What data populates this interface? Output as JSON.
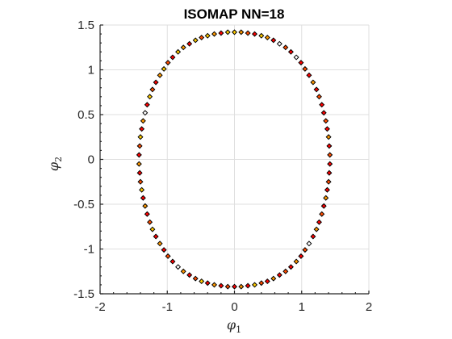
{
  "chart_data": {
    "type": "scatter",
    "title": "ISOMAP NN=18",
    "xlabel": {
      "base": "φ",
      "sub": "1"
    },
    "ylabel": {
      "base": "φ",
      "sub": "2"
    },
    "xlim": [
      -2,
      2
    ],
    "ylim": [
      -1.5,
      1.5
    ],
    "xticks": [
      -2,
      -1,
      0,
      1,
      2
    ],
    "yticks": [
      -1.5,
      -1,
      -0.5,
      0,
      0.5,
      1,
      1.5
    ],
    "xtick_labels": [
      "-2",
      "-1",
      "0",
      "1",
      "2"
    ],
    "ytick_labels": [
      "-1.5",
      "-1",
      "-0.5",
      "0",
      "0.5",
      "1",
      "1.5"
    ],
    "grid": true,
    "marker": "diamond",
    "marker_edge_color": "#000000",
    "fill_colors": [
      "#ff0000",
      "#ff4d00",
      "#ff9900",
      "#ffcc00",
      "#ffffff"
    ],
    "points": [
      [
        0.0,
        1.42,
        3
      ],
      [
        0.1,
        1.42,
        2
      ],
      [
        0.2,
        1.41,
        1
      ],
      [
        0.3,
        1.4,
        0
      ],
      [
        0.4,
        1.38,
        3
      ],
      [
        0.49,
        1.36,
        2
      ],
      [
        0.58,
        1.33,
        0
      ],
      [
        0.67,
        1.29,
        4
      ],
      [
        0.76,
        1.25,
        1
      ],
      [
        0.84,
        1.2,
        0
      ],
      [
        0.92,
        1.14,
        4
      ],
      [
        0.99,
        1.08,
        0
      ],
      [
        1.05,
        1.01,
        1
      ],
      [
        1.11,
        0.94,
        0
      ],
      [
        1.17,
        0.86,
        2
      ],
      [
        1.22,
        0.78,
        0
      ],
      [
        1.26,
        0.7,
        1
      ],
      [
        1.3,
        0.61,
        0
      ],
      [
        1.33,
        0.52,
        0
      ],
      [
        1.36,
        0.43,
        1
      ],
      [
        1.38,
        0.34,
        0
      ],
      [
        1.4,
        0.25,
        2
      ],
      [
        1.41,
        0.15,
        0
      ],
      [
        1.42,
        0.05,
        1
      ],
      [
        1.42,
        -0.05,
        0
      ],
      [
        1.41,
        -0.15,
        0
      ],
      [
        1.4,
        -0.25,
        1
      ],
      [
        1.38,
        -0.34,
        0
      ],
      [
        1.36,
        -0.43,
        2
      ],
      [
        1.33,
        -0.52,
        0
      ],
      [
        1.3,
        -0.61,
        1
      ],
      [
        1.26,
        -0.7,
        0
      ],
      [
        1.22,
        -0.78,
        2
      ],
      [
        1.17,
        -0.86,
        0
      ],
      [
        1.11,
        -0.94,
        4
      ],
      [
        1.05,
        -1.01,
        1
      ],
      [
        0.99,
        -1.08,
        0
      ],
      [
        0.92,
        -1.14,
        2
      ],
      [
        0.84,
        -1.2,
        0
      ],
      [
        0.76,
        -1.25,
        1
      ],
      [
        0.67,
        -1.29,
        0
      ],
      [
        0.58,
        -1.33,
        2
      ],
      [
        0.49,
        -1.36,
        0
      ],
      [
        0.4,
        -1.38,
        1
      ],
      [
        0.3,
        -1.4,
        3
      ],
      [
        0.2,
        -1.41,
        0
      ],
      [
        0.1,
        -1.42,
        2
      ],
      [
        0.0,
        -1.42,
        0
      ],
      [
        -0.1,
        -1.42,
        1
      ],
      [
        -0.2,
        -1.41,
        0
      ],
      [
        -0.3,
        -1.4,
        2
      ],
      [
        -0.4,
        -1.38,
        0
      ],
      [
        -0.49,
        -1.36,
        3
      ],
      [
        -0.58,
        -1.33,
        1
      ],
      [
        -0.67,
        -1.29,
        0
      ],
      [
        -0.76,
        -1.25,
        2
      ],
      [
        -0.84,
        -1.2,
        4
      ],
      [
        -0.92,
        -1.14,
        0
      ],
      [
        -0.99,
        -1.08,
        1
      ],
      [
        -1.05,
        -1.01,
        0
      ],
      [
        -1.11,
        -0.94,
        2
      ],
      [
        -1.17,
        -0.86,
        0
      ],
      [
        -1.22,
        -0.78,
        3
      ],
      [
        -1.26,
        -0.7,
        1
      ],
      [
        -1.3,
        -0.61,
        0
      ],
      [
        -1.33,
        -0.52,
        2
      ],
      [
        -1.36,
        -0.43,
        0
      ],
      [
        -1.38,
        -0.34,
        3
      ],
      [
        -1.4,
        -0.25,
        1
      ],
      [
        -1.41,
        -0.15,
        0
      ],
      [
        -1.42,
        -0.05,
        2
      ],
      [
        -1.42,
        0.05,
        0
      ],
      [
        -1.41,
        0.15,
        1
      ],
      [
        -1.4,
        0.25,
        3
      ],
      [
        -1.38,
        0.34,
        0
      ],
      [
        -1.36,
        0.43,
        2
      ],
      [
        -1.33,
        0.52,
        4
      ],
      [
        -1.3,
        0.61,
        0
      ],
      [
        -1.26,
        0.7,
        3
      ],
      [
        -1.22,
        0.78,
        1
      ],
      [
        -1.17,
        0.86,
        0
      ],
      [
        -1.11,
        0.94,
        2
      ],
      [
        -1.05,
        1.01,
        3
      ],
      [
        -0.99,
        1.08,
        1
      ],
      [
        -0.92,
        1.14,
        0
      ],
      [
        -0.84,
        1.2,
        3
      ],
      [
        -0.76,
        1.25,
        2
      ],
      [
        -0.67,
        1.29,
        0
      ],
      [
        -0.58,
        1.33,
        3
      ],
      [
        -0.49,
        1.36,
        1
      ],
      [
        -0.4,
        1.38,
        3
      ],
      [
        -0.3,
        1.4,
        2
      ],
      [
        -0.2,
        1.41,
        0
      ],
      [
        -0.1,
        1.42,
        3
      ]
    ]
  }
}
